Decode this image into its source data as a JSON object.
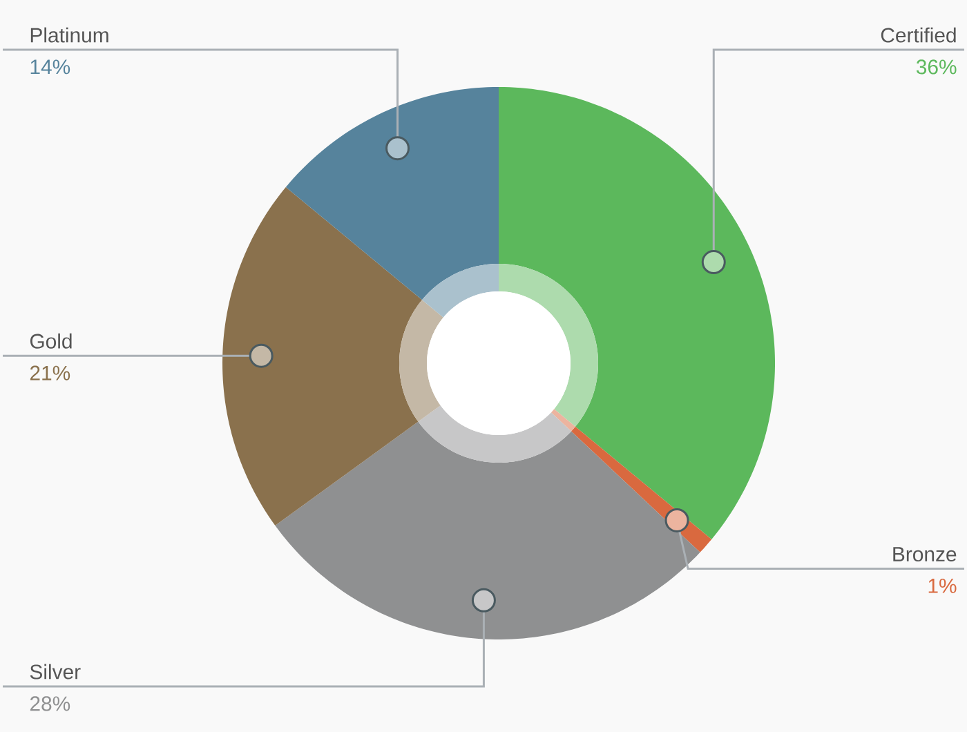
{
  "chart_data": {
    "type": "donut",
    "categories": [
      "Certified",
      "Bronze",
      "Silver",
      "Gold",
      "Platinum"
    ],
    "value_labels": [
      "36%",
      "1%",
      "28%",
      "21%",
      "14%"
    ],
    "series": [
      {
        "values": [
          36,
          1,
          28,
          21,
          14
        ],
        "colors": [
          "#5cb85c",
          "#d9693f",
          "#8f9091",
          "#8a714d",
          "#56839c"
        ]
      },
      {
        "values": [
          36,
          1,
          28,
          21,
          14
        ],
        "colors": [
          "#addbad",
          "#ecb49f",
          "#c7c7c8",
          "#c4b8a6",
          "#aac1cd"
        ]
      }
    ]
  }
}
